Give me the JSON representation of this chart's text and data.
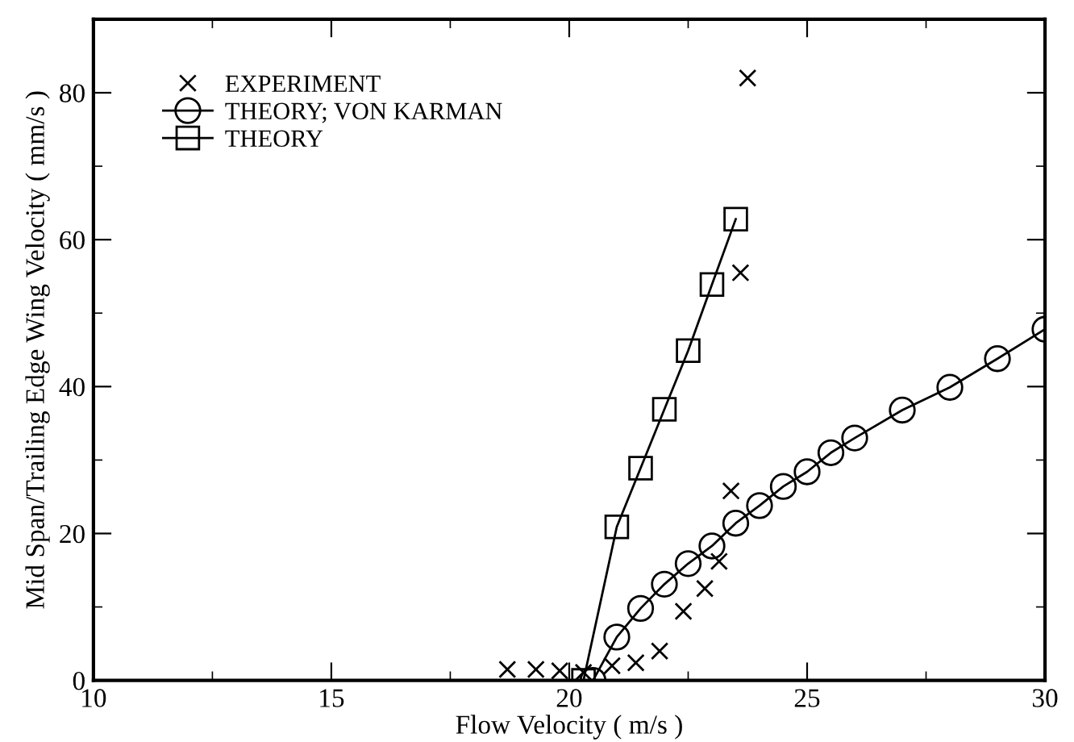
{
  "chart_data": {
    "type": "line",
    "xlabel": "Flow Velocity ( m/s )",
    "ylabel": "Mid Span/Trailing Edge Wing Velocity ( mm/s )",
    "series": [
      {
        "name": "EXPERIMENT",
        "type": "scatter",
        "marker": "cross",
        "color": "#000000",
        "x": [
          18.7,
          19.3,
          19.8,
          20.3,
          20.9,
          21.4,
          21.9,
          22.4,
          22.85,
          23.15,
          23.4,
          23.6,
          23.75
        ],
        "values": [
          1.5,
          1.5,
          1.3,
          1.1,
          2,
          2.4,
          4,
          9.4,
          12.5,
          16.2,
          25.8,
          55.5,
          82
        ]
      },
      {
        "name": "THEORY; VON KARMAN",
        "marker": "circle",
        "color": "#000000",
        "x": [
          20.5,
          21,
          21.5,
          22,
          22.5,
          23,
          23.5,
          24,
          24.5,
          25,
          25.5,
          26,
          27,
          28,
          29,
          30
        ],
        "values": [
          0,
          5.9,
          9.8,
          13.1,
          15.9,
          18.3,
          21.4,
          23.8,
          26.4,
          28.4,
          31,
          33,
          36.8,
          39.9,
          43.8,
          47.8
        ]
      },
      {
        "name": "THEORY",
        "marker": "square",
        "color": "#000000",
        "x": [
          20.3,
          21,
          21.5,
          22,
          22.5,
          23,
          23.5
        ],
        "values": [
          0,
          20.9,
          28.9,
          36.9,
          44.9,
          53.9,
          62.8
        ]
      }
    ],
    "xlim": [
      10,
      30
    ],
    "ylim": [
      0,
      90
    ],
    "xticks": [
      10,
      {
        "value": 12.5,
        "label": null
      },
      15,
      {
        "value": 17.5,
        "label": null
      },
      20,
      {
        "value": 22.5,
        "label": null
      },
      25,
      {
        "value": 27.5,
        "label": null
      },
      30
    ],
    "yticks": [
      0,
      {
        "value": 10,
        "label": null
      },
      20,
      {
        "value": 30,
        "label": null
      },
      40,
      {
        "value": 50,
        "label": null
      },
      60,
      {
        "value": 70,
        "label": null
      },
      80
    ],
    "legend": "top left",
    "grid": false
  }
}
